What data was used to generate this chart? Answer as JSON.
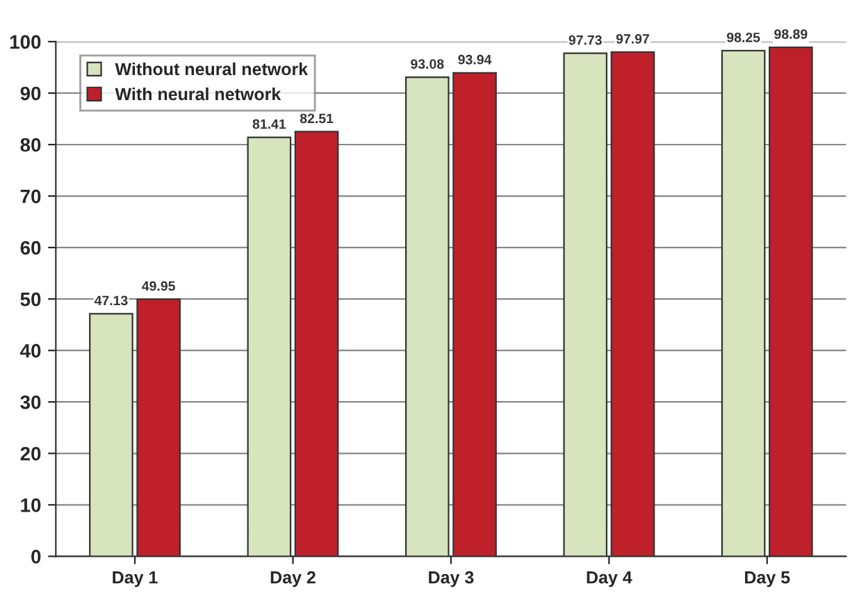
{
  "chart_data": {
    "type": "bar",
    "categories": [
      "Day 1",
      "Day 2",
      "Day 3",
      "Day 4",
      "Day 5"
    ],
    "series": [
      {
        "name": "Without neural network",
        "color": "#d7e4bd",
        "values": [
          47.13,
          81.41,
          93.08,
          97.73,
          98.25
        ]
      },
      {
        "name": "With neural network",
        "color": "#c0202a",
        "values": [
          49.95,
          82.51,
          93.94,
          97.97,
          98.89
        ]
      }
    ],
    "ylim": [
      0,
      100
    ],
    "yticks": [
      0,
      10,
      20,
      30,
      40,
      50,
      60,
      70,
      80,
      90,
      100
    ],
    "grid": "y",
    "legend": "top left",
    "data_labels": true
  }
}
